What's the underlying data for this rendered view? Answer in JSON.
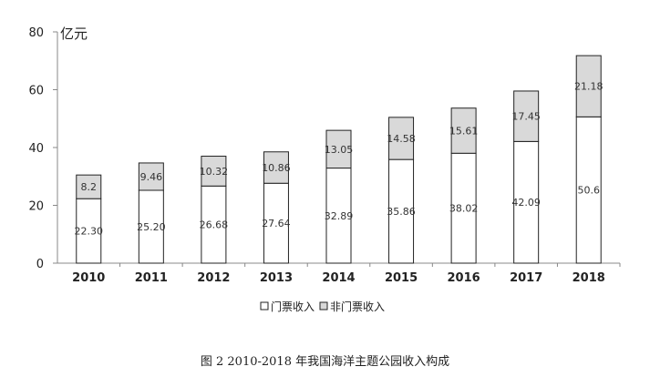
{
  "chart_data": {
    "type": "bar",
    "stacked": true,
    "categories": [
      "2010",
      "2011",
      "2012",
      "2013",
      "2014",
      "2015",
      "2016",
      "2017",
      "2018"
    ],
    "series": [
      {
        "name": "门票收入",
        "values": [
          22.3,
          25.2,
          26.68,
          27.64,
          32.89,
          35.86,
          38.02,
          42.09,
          50.6
        ],
        "labels": [
          "22.30",
          "25.20",
          "26.68",
          "27.64",
          "32.89",
          "35.86",
          "38.02",
          "42.09",
          "50.6"
        ],
        "color": "#ffffff"
      },
      {
        "name": "非门票收入",
        "values": [
          8.2,
          9.46,
          10.32,
          10.86,
          13.05,
          14.58,
          15.61,
          17.45,
          21.18
        ],
        "labels": [
          "8.2",
          "9.46",
          "10.32",
          "10.86",
          "13.05",
          "14.58",
          "15.61",
          "17.45",
          "21.18"
        ],
        "color": "#d9d9d9"
      }
    ],
    "ylabel": "亿元",
    "ylim": [
      0,
      80
    ],
    "yticks": [
      0,
      20,
      40,
      60,
      80
    ],
    "grid": false,
    "legend_position": "bottom"
  },
  "caption": "图 2 2010-2018 年我国海洋主题公园收入构成"
}
